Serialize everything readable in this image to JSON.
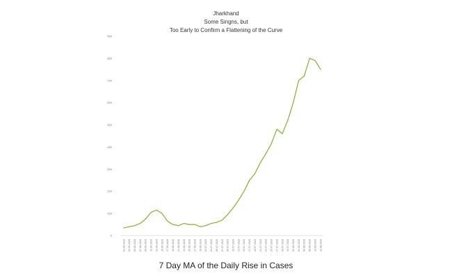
{
  "chart_data": {
    "type": "line",
    "title_lines": [
      "Jharkhand",
      "Some Singns, but",
      "Too Early to Confirm a Flattening of the Curve"
    ],
    "caption": "7 Day MA of the Daily Rise in Cases",
    "y_ticks": [
      "0",
      "100",
      "200",
      "300",
      "400",
      "500",
      "600",
      "700",
      "800",
      "900"
    ],
    "ylim": [
      0,
      900
    ],
    "grid": false,
    "legend": "none",
    "line_color": "#8db540",
    "x": [
      "01.06.2020",
      "03.06.2020",
      "05.06.2020",
      "07.06.2020",
      "09.06.2020",
      "11.06.2020",
      "13.06.2020",
      "15.06.2020",
      "17.06.2020",
      "19.06.2020",
      "21.06.2020",
      "23.06.2020",
      "25.06.2020",
      "27.06.2020",
      "29.06.2020",
      "01.07.2020",
      "03.07.2020",
      "05.07.2020",
      "07.07.2020",
      "09.07.2020",
      "11.07.2020",
      "13.07.2020",
      "15.07.2020",
      "17.07.2020",
      "19.07.2020",
      "21.07.2020",
      "23.07.2020",
      "25.07.2020",
      "27.07.2020",
      "29.07.2020",
      "31.07.2020",
      "02.08.2020",
      "04.08.2020",
      "06.08.2020",
      "08.08.2020",
      "10.08.2020",
      "12.08.2020"
    ],
    "series": [
      {
        "values": [
          35,
          40,
          45,
          55,
          75,
          105,
          115,
          100,
          65,
          50,
          45,
          55,
          50,
          50,
          40,
          45,
          55,
          60,
          70,
          95,
          125,
          160,
          200,
          250,
          280,
          330,
          370,
          415,
          480,
          460,
          520,
          600,
          700,
          720,
          800,
          790,
          750
        ]
      }
    ]
  }
}
